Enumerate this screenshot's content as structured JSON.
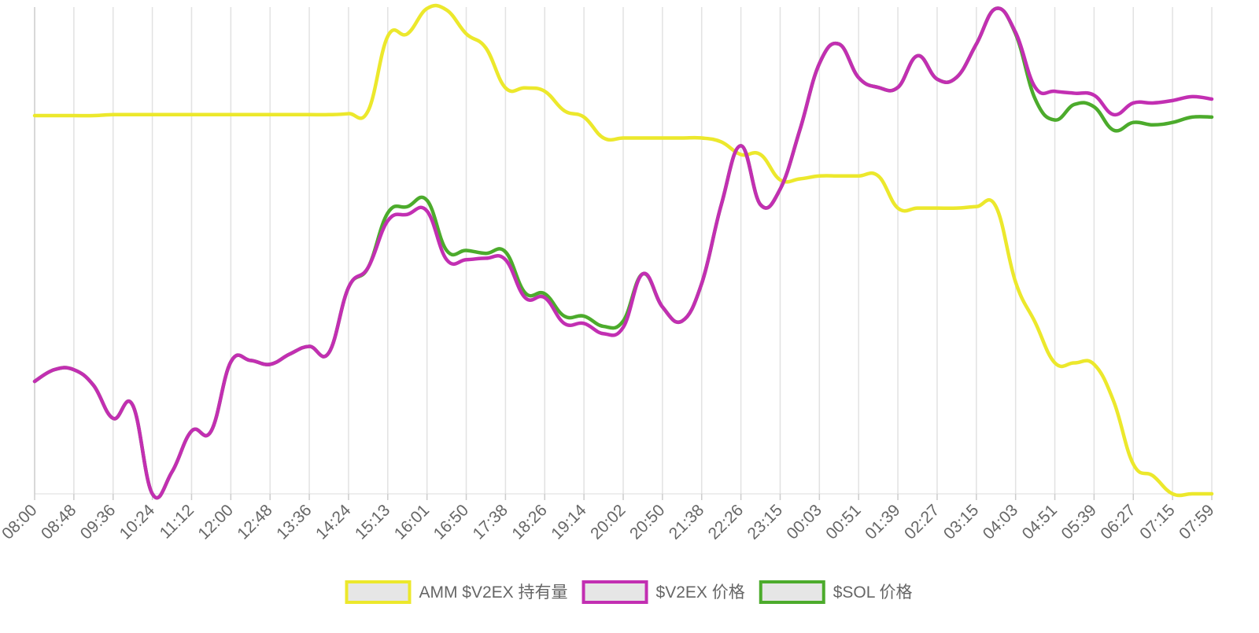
{
  "chart_data": {
    "type": "line",
    "categories": [
      "08:00",
      null,
      "08:48",
      null,
      "09:36",
      null,
      "10:24",
      null,
      "11:12",
      null,
      "12:00",
      null,
      "12:48",
      null,
      "13:36",
      null,
      "14:24",
      null,
      "15:13",
      null,
      "16:01",
      null,
      "16:50",
      null,
      "17:38",
      null,
      "18:26",
      null,
      "19:14",
      null,
      "20:02",
      null,
      "20:50",
      null,
      "21:38",
      null,
      "22:26",
      null,
      "23:15",
      null,
      "00:03",
      null,
      "00:51",
      null,
      "01:39",
      null,
      "02:27",
      null,
      "03:15",
      null,
      "04:03",
      null,
      "04:51",
      null,
      "05:39",
      null,
      "06:27",
      null,
      "07:15",
      null,
      "07:59"
    ],
    "ylim": [
      0,
      100
    ],
    "grid": true,
    "legend": "bottom",
    "series": [
      {
        "name": "AMM $V2EX 持有量",
        "color": "#ece82c",
        "values": [
          77.7,
          77.7,
          77.7,
          77.7,
          77.9,
          77.9,
          77.9,
          77.9,
          77.9,
          77.9,
          77.9,
          77.9,
          77.9,
          77.9,
          77.9,
          77.9,
          78.1,
          78.7,
          94.0,
          94.5,
          99.7,
          99.4,
          94.5,
          91.6,
          83.4,
          83.4,
          82.7,
          78.7,
          77.4,
          73.1,
          73.1,
          73.1,
          73.1,
          73.1,
          73.1,
          72.3,
          69.7,
          69.7,
          64.5,
          64.7,
          65.3,
          65.3,
          65.3,
          65.3,
          58.7,
          58.7,
          58.7,
          58.7,
          59.0,
          59.0,
          43.5,
          35.2,
          26.9,
          26.9,
          26.6,
          19.0,
          6.1,
          3.7,
          0,
          0,
          0
        ]
      },
      {
        "name": "$V2EX 价格",
        "color": "#c22fb2",
        "values": [
          23.1,
          25.5,
          25.5,
          22.3,
          15.5,
          18.2,
          0,
          4.5,
          12.9,
          12.9,
          27.1,
          27.4,
          26.6,
          28.7,
          30.3,
          29.0,
          42.4,
          46.5,
          56.1,
          57.4,
          58.1,
          48.1,
          48.1,
          48.4,
          48.1,
          40.3,
          40.3,
          35.0,
          35.0,
          32.9,
          34.2,
          45.2,
          38.4,
          35.5,
          43.2,
          59.4,
          71.5,
          59.4,
          62.6,
          74.7,
          88.4,
          92.4,
          85.5,
          83.5,
          83.5,
          90.0,
          85.2,
          85.6,
          92.4,
          99.7,
          94.8,
          83.5,
          82.7,
          82.3,
          81.9,
          77.9,
          80.3,
          80.3,
          80.8,
          81.6,
          81.1
        ]
      },
      {
        "name": "$SOL 价格",
        "color": "#4cab2c",
        "values": [
          23.1,
          25.5,
          25.5,
          22.3,
          15.5,
          18.2,
          0,
          4.5,
          12.9,
          12.9,
          27.1,
          27.4,
          26.6,
          28.7,
          30.3,
          29.0,
          42.4,
          46.5,
          57.7,
          59.0,
          60.3,
          50.0,
          50.0,
          49.4,
          49.7,
          41.3,
          41.1,
          36.5,
          36.5,
          34.4,
          35.5,
          45.2,
          38.4,
          35.5,
          43.2,
          59.4,
          71.5,
          59.4,
          62.6,
          74.7,
          88.4,
          92.4,
          85.5,
          83.5,
          83.5,
          90.0,
          85.2,
          85.6,
          92.4,
          99.7,
          94.5,
          81.1,
          76.8,
          80.0,
          79.5,
          74.7,
          76.3,
          75.8,
          76.3,
          77.4,
          77.4
        ]
      }
    ]
  }
}
